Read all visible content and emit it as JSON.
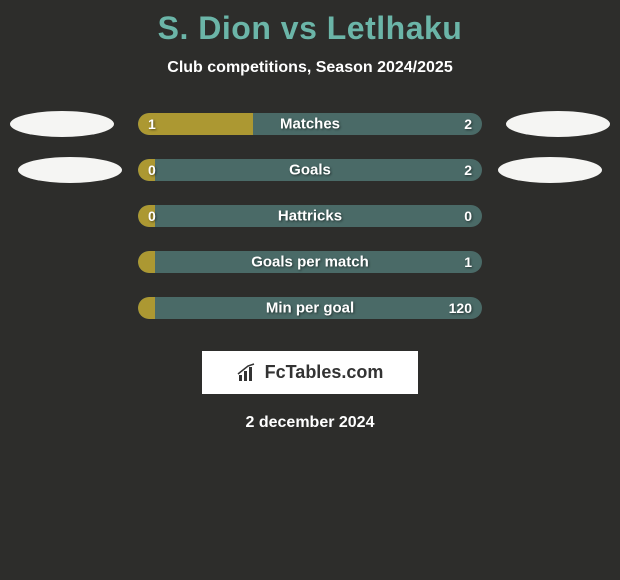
{
  "title": "S. Dion vs Letlhaku",
  "subtitle": "Club competitions, Season 2024/2025",
  "date": "2 december 2024",
  "logo_text": "FcTables.com",
  "colors": {
    "background": "#2d2d2b",
    "title_color": "#6bb5a8",
    "text_color": "#ffffff",
    "fill_color": "#ac9832",
    "track_color": "#4a6a67",
    "ellipse_color": "#f5f5f3",
    "logo_bg": "#ffffff",
    "logo_text_color": "#333333"
  },
  "bar_dimensions": {
    "track_width": 344,
    "track_height": 22,
    "border_radius": 11
  },
  "rows": [
    {
      "label": "Matches",
      "left_value": "1",
      "right_value": "2",
      "fill_percent": 33.3,
      "show_ellipses": true,
      "ellipse_class": "row1"
    },
    {
      "label": "Goals",
      "left_value": "0",
      "right_value": "2",
      "fill_percent": 5,
      "show_ellipses": true,
      "ellipse_class": "row2"
    },
    {
      "label": "Hattricks",
      "left_value": "0",
      "right_value": "0",
      "fill_percent": 5,
      "show_ellipses": false
    },
    {
      "label": "Goals per match",
      "left_value": "",
      "right_value": "1",
      "fill_percent": 5,
      "show_ellipses": false
    },
    {
      "label": "Min per goal",
      "left_value": "",
      "right_value": "120",
      "fill_percent": 5,
      "show_ellipses": false
    }
  ]
}
